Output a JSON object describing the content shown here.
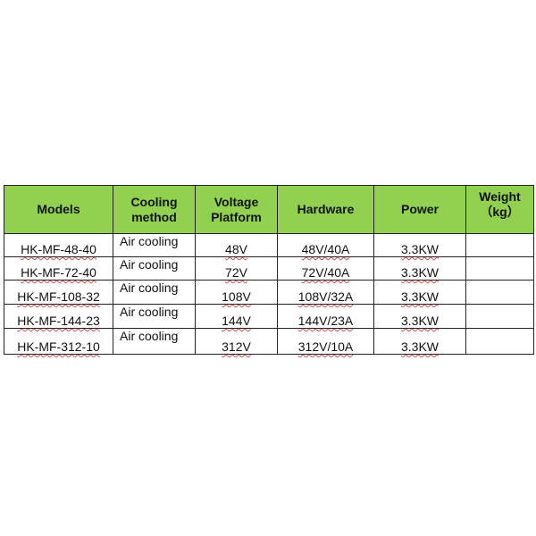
{
  "table": {
    "header_color": "#92d050",
    "columns": [
      "Models",
      "Cooling\nmethod",
      "Voltage\nPlatform",
      "Hardware",
      "Power",
      "Weight\n（kg）"
    ],
    "rows": [
      [
        "HK-MF-48-40",
        "Air cooling",
        "48V",
        "48V/40A",
        "3.3KW",
        ""
      ],
      [
        "HK-MF-72-40",
        "Air cooling",
        "72V",
        "72V/40A",
        "3.3KW",
        ""
      ],
      [
        "HK-MF-108-32",
        "Air cooling",
        "108V",
        "108V/32A",
        "3.3KW",
        ""
      ],
      [
        "HK-MF-144-23",
        "Air cooling",
        "144V",
        "144V/23A",
        "3.3KW",
        ""
      ],
      [
        "HK-MF-312-10",
        "Air cooling",
        "312V",
        "312V/10A",
        "3.3KW",
        ""
      ]
    ]
  }
}
